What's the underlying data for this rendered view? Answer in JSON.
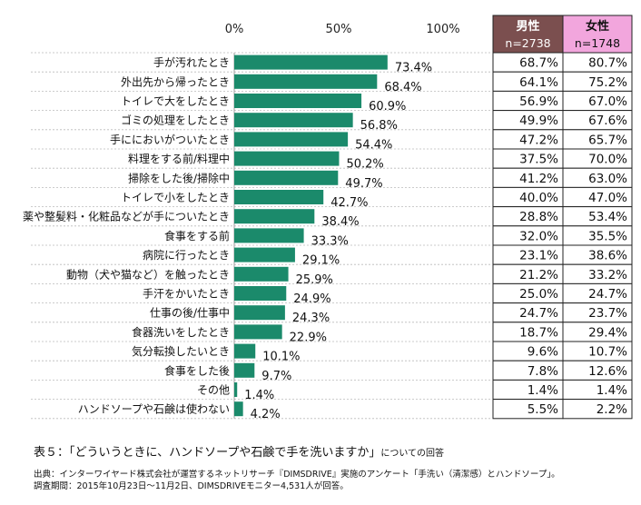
{
  "chart_data": {
    "type": "bar",
    "orientation": "horizontal",
    "x_ticks": [
      "0%",
      "50%",
      "100%"
    ],
    "xlim": [
      0,
      100
    ],
    "grid": "dashed horizontal",
    "bar_color": "#1b8a6b",
    "categories": [
      "手が汚れたとき",
      "外出先から帰ったとき",
      "トイレで大をしたとき",
      "ゴミの処理をしたとき",
      "手ににおいがついたとき",
      "料理をする前/料理中",
      "掃除をした後/掃除中",
      "トイレで小をしたとき",
      "薬や整髪料・化粧品などが手についたとき",
      "食事をする前",
      "病院に行ったとき",
      "動物（犬や猫など）を触ったとき",
      "手汗をかいたとき",
      "仕事の後/仕事中",
      "食器洗いをしたとき",
      "気分転換したいとき",
      "食事をした後",
      "その他",
      "ハンドソープや石鹸は使わない"
    ],
    "values": [
      73.4,
      68.4,
      60.9,
      56.8,
      54.4,
      50.2,
      49.7,
      42.7,
      38.4,
      33.3,
      29.1,
      25.9,
      24.9,
      24.3,
      22.9,
      10.1,
      9.7,
      1.4,
      4.2
    ],
    "value_labels": [
      "73.4%",
      "68.4%",
      "60.9%",
      "56.8%",
      "54.4%",
      "50.2%",
      "49.7%",
      "42.7%",
      "38.4%",
      "33.3%",
      "29.1%",
      "25.9%",
      "24.9%",
      "24.3%",
      "22.9%",
      "10.1%",
      "9.7%",
      "1.4%",
      "4.2%"
    ],
    "table": {
      "columns": [
        {
          "header": "男性",
          "sub": "n=2738",
          "header_bg": "#7b4f4f",
          "header_color": "#ffffff",
          "values": [
            "68.7%",
            "64.1%",
            "56.9%",
            "49.9%",
            "47.2%",
            "37.5%",
            "41.2%",
            "40.0%",
            "28.8%",
            "32.0%",
            "23.1%",
            "21.2%",
            "25.0%",
            "24.7%",
            "18.7%",
            "9.6%",
            "7.8%",
            "1.4%",
            "5.5%"
          ]
        },
        {
          "header": "女性",
          "sub": "n=1748",
          "header_bg": "#f2a6dd",
          "header_color": "#111111",
          "values": [
            "80.7%",
            "75.2%",
            "67.0%",
            "67.6%",
            "65.7%",
            "70.0%",
            "63.0%",
            "47.0%",
            "53.4%",
            "35.5%",
            "38.6%",
            "33.2%",
            "24.7%",
            "23.7%",
            "29.4%",
            "10.7%",
            "12.6%",
            "1.4%",
            "2.2%"
          ]
        }
      ]
    }
  },
  "caption": {
    "main": "表５：「どういうときに、ハンドソープや石鹸で手を洗いますか」",
    "suffix": "についての回答"
  },
  "source": {
    "line1": "出典：インターワイヤード株式会社が運営するネットリサーチ『DIMSDRIVE』実施のアンケート「手洗い（清潔感）とハンドソープ」。",
    "line2": "調査期間：2015年10月23日～11月2日、DIMSDRIVEモニター4,531人が回答。"
  }
}
